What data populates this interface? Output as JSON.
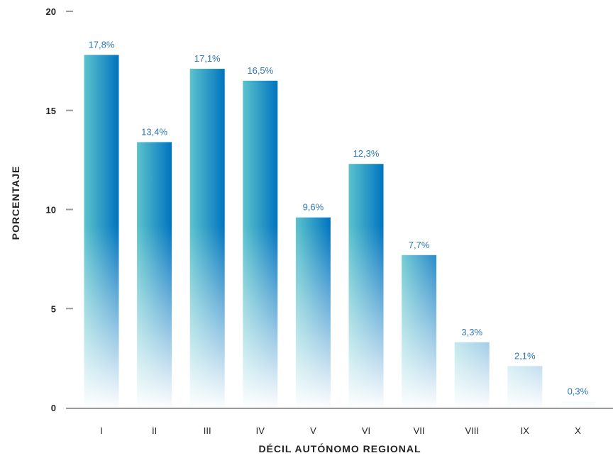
{
  "chart_data": {
    "type": "bar",
    "xlabel": "DÉCIL AUTÓNOMO REGIONAL",
    "ylabel": "PORCENTAJE",
    "categories": [
      "I",
      "II",
      "III",
      "IV",
      "V",
      "VI",
      "VII",
      "VIII",
      "IX",
      "X"
    ],
    "values": [
      17.8,
      13.4,
      17.1,
      16.5,
      9.6,
      12.3,
      7.7,
      3.3,
      2.1,
      0.3
    ],
    "data_labels": [
      "17,8%",
      "13,4%",
      "17,1%",
      "16,5%",
      "9,6%",
      "12,3%",
      "7,7%",
      "3,3%",
      "2,1%",
      "0,3%"
    ],
    "yticks": [
      0,
      5,
      10,
      15,
      20
    ],
    "ylim": [
      0,
      20
    ],
    "grid": false,
    "legend": "none",
    "colors": {
      "bar_light": "#5cc3cc",
      "bar_dark": "#0073bf",
      "label": "#2e77b8",
      "axis": "#9a9a9a",
      "text": "#222222"
    }
  }
}
